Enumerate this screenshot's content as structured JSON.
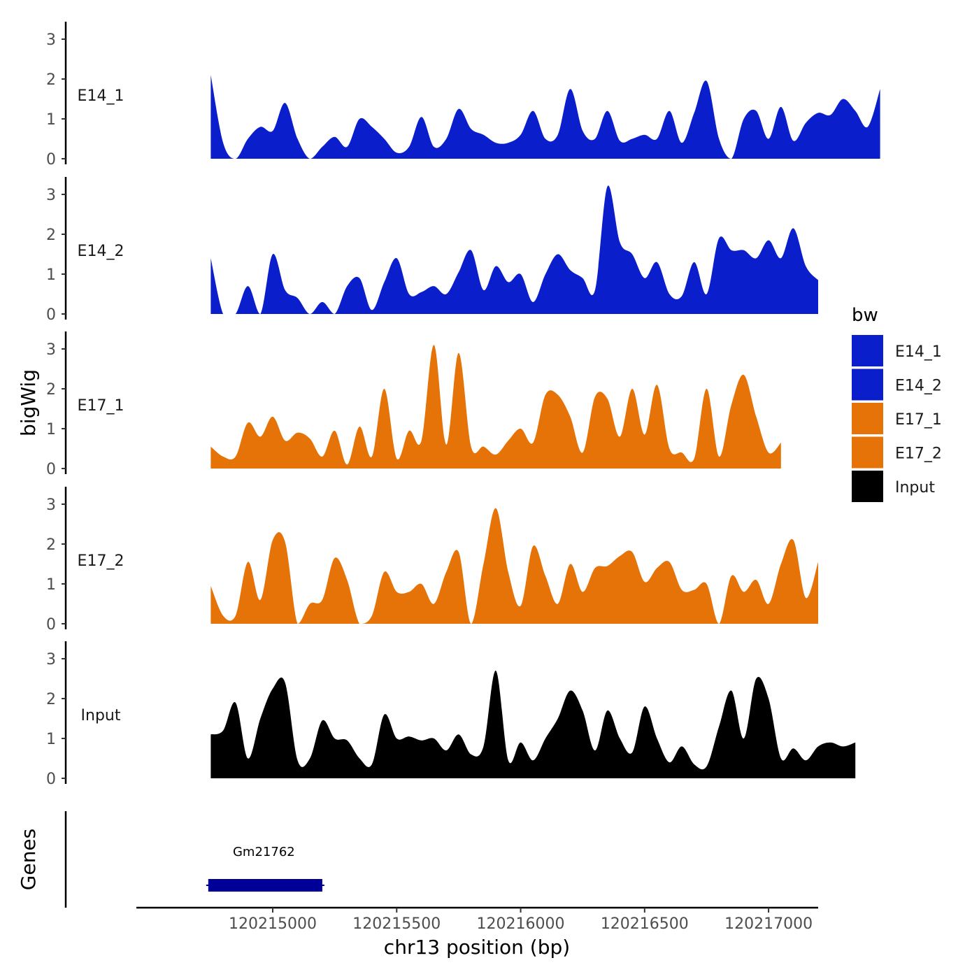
{
  "chart_data": {
    "type": "area",
    "xlabel": "chr13 position (bp)",
    "ylabel": "bigWig",
    "genes_axis_label": "Genes",
    "xlim": [
      120214450,
      120217200
    ],
    "x_ticks": [
      120215000,
      120215500,
      120216000,
      120216500,
      120217000
    ],
    "x_tick_labels": [
      "120215000",
      "120215500",
      "120216000",
      "120216500",
      "120217000"
    ],
    "ylim": [
      0,
      3.4
    ],
    "y_ticks": [
      0,
      1,
      2,
      3
    ],
    "y_tick_labels": [
      "0",
      "1",
      "2",
      "3"
    ],
    "x_start": 120214750,
    "x_step": 50,
    "series": [
      {
        "name": "E14_1",
        "color": "#0a1ecc",
        "values": [
          2.1,
          0.4,
          0,
          0.5,
          0.8,
          0.7,
          1.4,
          0.5,
          0,
          0.3,
          0.55,
          0.3,
          1.0,
          0.8,
          0.5,
          0.15,
          0.3,
          1.05,
          0.3,
          0.5,
          1.25,
          0.75,
          0.6,
          0.4,
          0.4,
          0.6,
          1.2,
          0.5,
          0.6,
          1.75,
          0.7,
          0.5,
          1.2,
          0.45,
          0.5,
          0.6,
          0.5,
          1.2,
          0.4,
          1.15,
          1.95,
          0.5,
          0,
          1.0,
          1.2,
          0.5,
          1.3,
          0.45,
          0.9,
          1.15,
          1.1,
          1.5,
          1.2,
          0.8,
          1.75
        ]
      },
      {
        "name": "E14_2",
        "color": "#0a1ecc",
        "values": [
          1.4,
          0,
          0,
          0.7,
          0,
          1.5,
          0.6,
          0.4,
          0,
          0.3,
          0,
          0.7,
          0.9,
          0.1,
          0.8,
          1.4,
          0.5,
          0.55,
          0.7,
          0.5,
          1.05,
          1.6,
          0.6,
          1.2,
          0.8,
          1.0,
          0.3,
          1.0,
          1.5,
          1.1,
          0.9,
          0.6,
          3.2,
          1.8,
          1.5,
          0.9,
          1.3,
          0.5,
          0.45,
          1.3,
          0.5,
          1.9,
          1.6,
          1.6,
          1.4,
          1.85,
          1.4,
          2.15,
          1.2,
          0.85
        ]
      },
      {
        "name": "E17_1",
        "color": "#e67308",
        "values": [
          0.55,
          0.3,
          0.3,
          1.15,
          0.8,
          1.3,
          0.7,
          0.9,
          0.75,
          0.3,
          0.95,
          0.1,
          1.05,
          0.3,
          2.0,
          0.25,
          0.95,
          0.7,
          3.1,
          0.6,
          2.9,
          0.55,
          0.55,
          0.35,
          0.7,
          1.0,
          0.65,
          1.85,
          1.85,
          1.3,
          0.4,
          1.8,
          1.75,
          0.8,
          2.0,
          0.85,
          2.1,
          0.5,
          0.4,
          0.25,
          2.0,
          0.3,
          1.6,
          2.35,
          1.3,
          0.4,
          0.65
        ]
      },
      {
        "name": "E17_2",
        "color": "#e67308",
        "values": [
          0.95,
          0.2,
          0.2,
          1.55,
          0.6,
          2.1,
          2.05,
          0,
          0.5,
          0.6,
          1.65,
          1.1,
          0,
          0.2,
          1.3,
          0.8,
          0.8,
          1.0,
          0.5,
          1.3,
          1.8,
          0,
          1.5,
          2.9,
          1.3,
          0.45,
          1.95,
          1.2,
          0.5,
          1.5,
          0.8,
          1.4,
          1.45,
          1.7,
          1.8,
          1.05,
          1.4,
          1.55,
          0.85,
          0.85,
          1.0,
          0,
          1.2,
          0.8,
          1.1,
          0.5,
          1.5,
          2.1,
          0.65,
          1.55
        ]
      },
      {
        "name": "Input",
        "color": "#000000",
        "values": [
          1.1,
          1.2,
          1.9,
          0.5,
          1.5,
          2.25,
          2.4,
          0.45,
          0.5,
          1.45,
          1.0,
          0.95,
          0.5,
          0.35,
          1.6,
          1.0,
          1.05,
          0.95,
          1.0,
          0.7,
          1.1,
          0.6,
          0.8,
          2.7,
          0.45,
          0.9,
          0.45,
          1.0,
          1.5,
          2.2,
          1.7,
          0.7,
          1.7,
          1.0,
          0.65,
          1.8,
          1.0,
          0.4,
          0.8,
          0.35,
          0.3,
          1.3,
          2.2,
          1.0,
          2.5,
          2.0,
          0.5,
          0.75,
          0.45,
          0.8,
          0.9,
          0.8,
          0.9
        ]
      }
    ],
    "legend": {
      "title": "bw",
      "position": "right",
      "entries": [
        {
          "label": "E14_1",
          "color": "#0a1ecc"
        },
        {
          "label": "E14_2",
          "color": "#0a1ecc"
        },
        {
          "label": "E17_1",
          "color": "#e67308"
        },
        {
          "label": "E17_2",
          "color": "#e67308"
        },
        {
          "label": "Input",
          "color": "#000000"
        }
      ]
    },
    "genes": [
      {
        "name": "Gm21762",
        "start": 120214740,
        "end": 120215200,
        "color": "#000099"
      }
    ]
  }
}
